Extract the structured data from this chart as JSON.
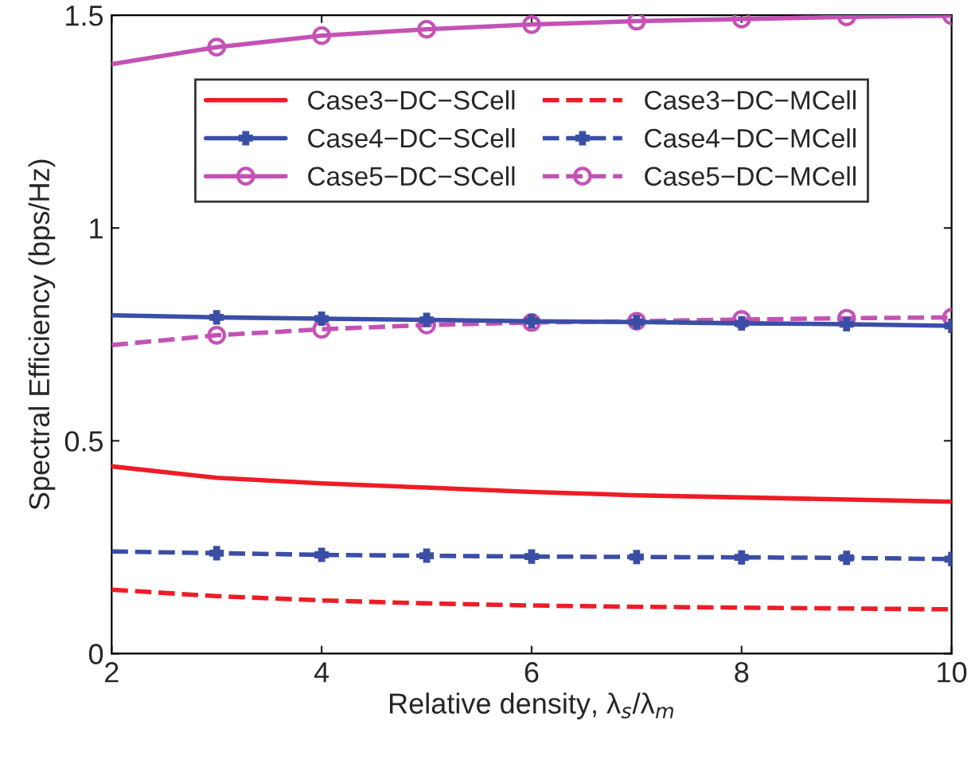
{
  "chart_data": {
    "type": "line",
    "xlabel": "Relative density, λ$_{s}$/λ$_{m}$",
    "ylabel": "Spectral Efficiency (bps/Hz)",
    "x": [
      2,
      3,
      4,
      5,
      6,
      7,
      8,
      9,
      10
    ],
    "xlim": [
      2,
      10
    ],
    "xticks": [
      2,
      4,
      6,
      8,
      10
    ],
    "ylim": [
      0,
      1.5
    ],
    "yticks": [
      0,
      0.5,
      1,
      1.5
    ],
    "grid": false,
    "legend": "top",
    "series": [
      {
        "name": "Case3−DC−SCell",
        "color": "#ee1c25",
        "line_style": "solid",
        "marker": "none",
        "values": [
          0.44,
          0.413,
          0.4,
          0.39,
          0.38,
          0.372,
          0.367,
          0.362,
          0.357
        ]
      },
      {
        "name": "Case3−DC−MCell",
        "color": "#ee1c25",
        "line_style": "dashed",
        "marker": "none",
        "values": [
          0.15,
          0.135,
          0.125,
          0.118,
          0.113,
          0.11,
          0.108,
          0.106,
          0.104
        ]
      },
      {
        "name": "Case4−DC−SCell",
        "color": "#3b4ea6",
        "line_style": "solid",
        "marker": "cross",
        "values": [
          0.795,
          0.79,
          0.787,
          0.784,
          0.781,
          0.779,
          0.776,
          0.774,
          0.77
        ]
      },
      {
        "name": "Case4−DC−MCell",
        "color": "#3b4ea6",
        "line_style": "dashed",
        "marker": "cross",
        "values": [
          0.24,
          0.236,
          0.232,
          0.23,
          0.228,
          0.227,
          0.226,
          0.225,
          0.222
        ]
      },
      {
        "name": "Case5−DC−SCell",
        "color": "#c452b5",
        "line_style": "solid",
        "marker": "circle",
        "values": [
          1.385,
          1.425,
          1.452,
          1.467,
          1.478,
          1.486,
          1.491,
          1.496,
          1.499
        ]
      },
      {
        "name": "Case5−DC−MCell",
        "color": "#c452b5",
        "line_style": "dashed",
        "marker": "circle",
        "values": [
          0.725,
          0.748,
          0.762,
          0.772,
          0.778,
          0.781,
          0.785,
          0.788,
          0.79
        ]
      }
    ]
  }
}
